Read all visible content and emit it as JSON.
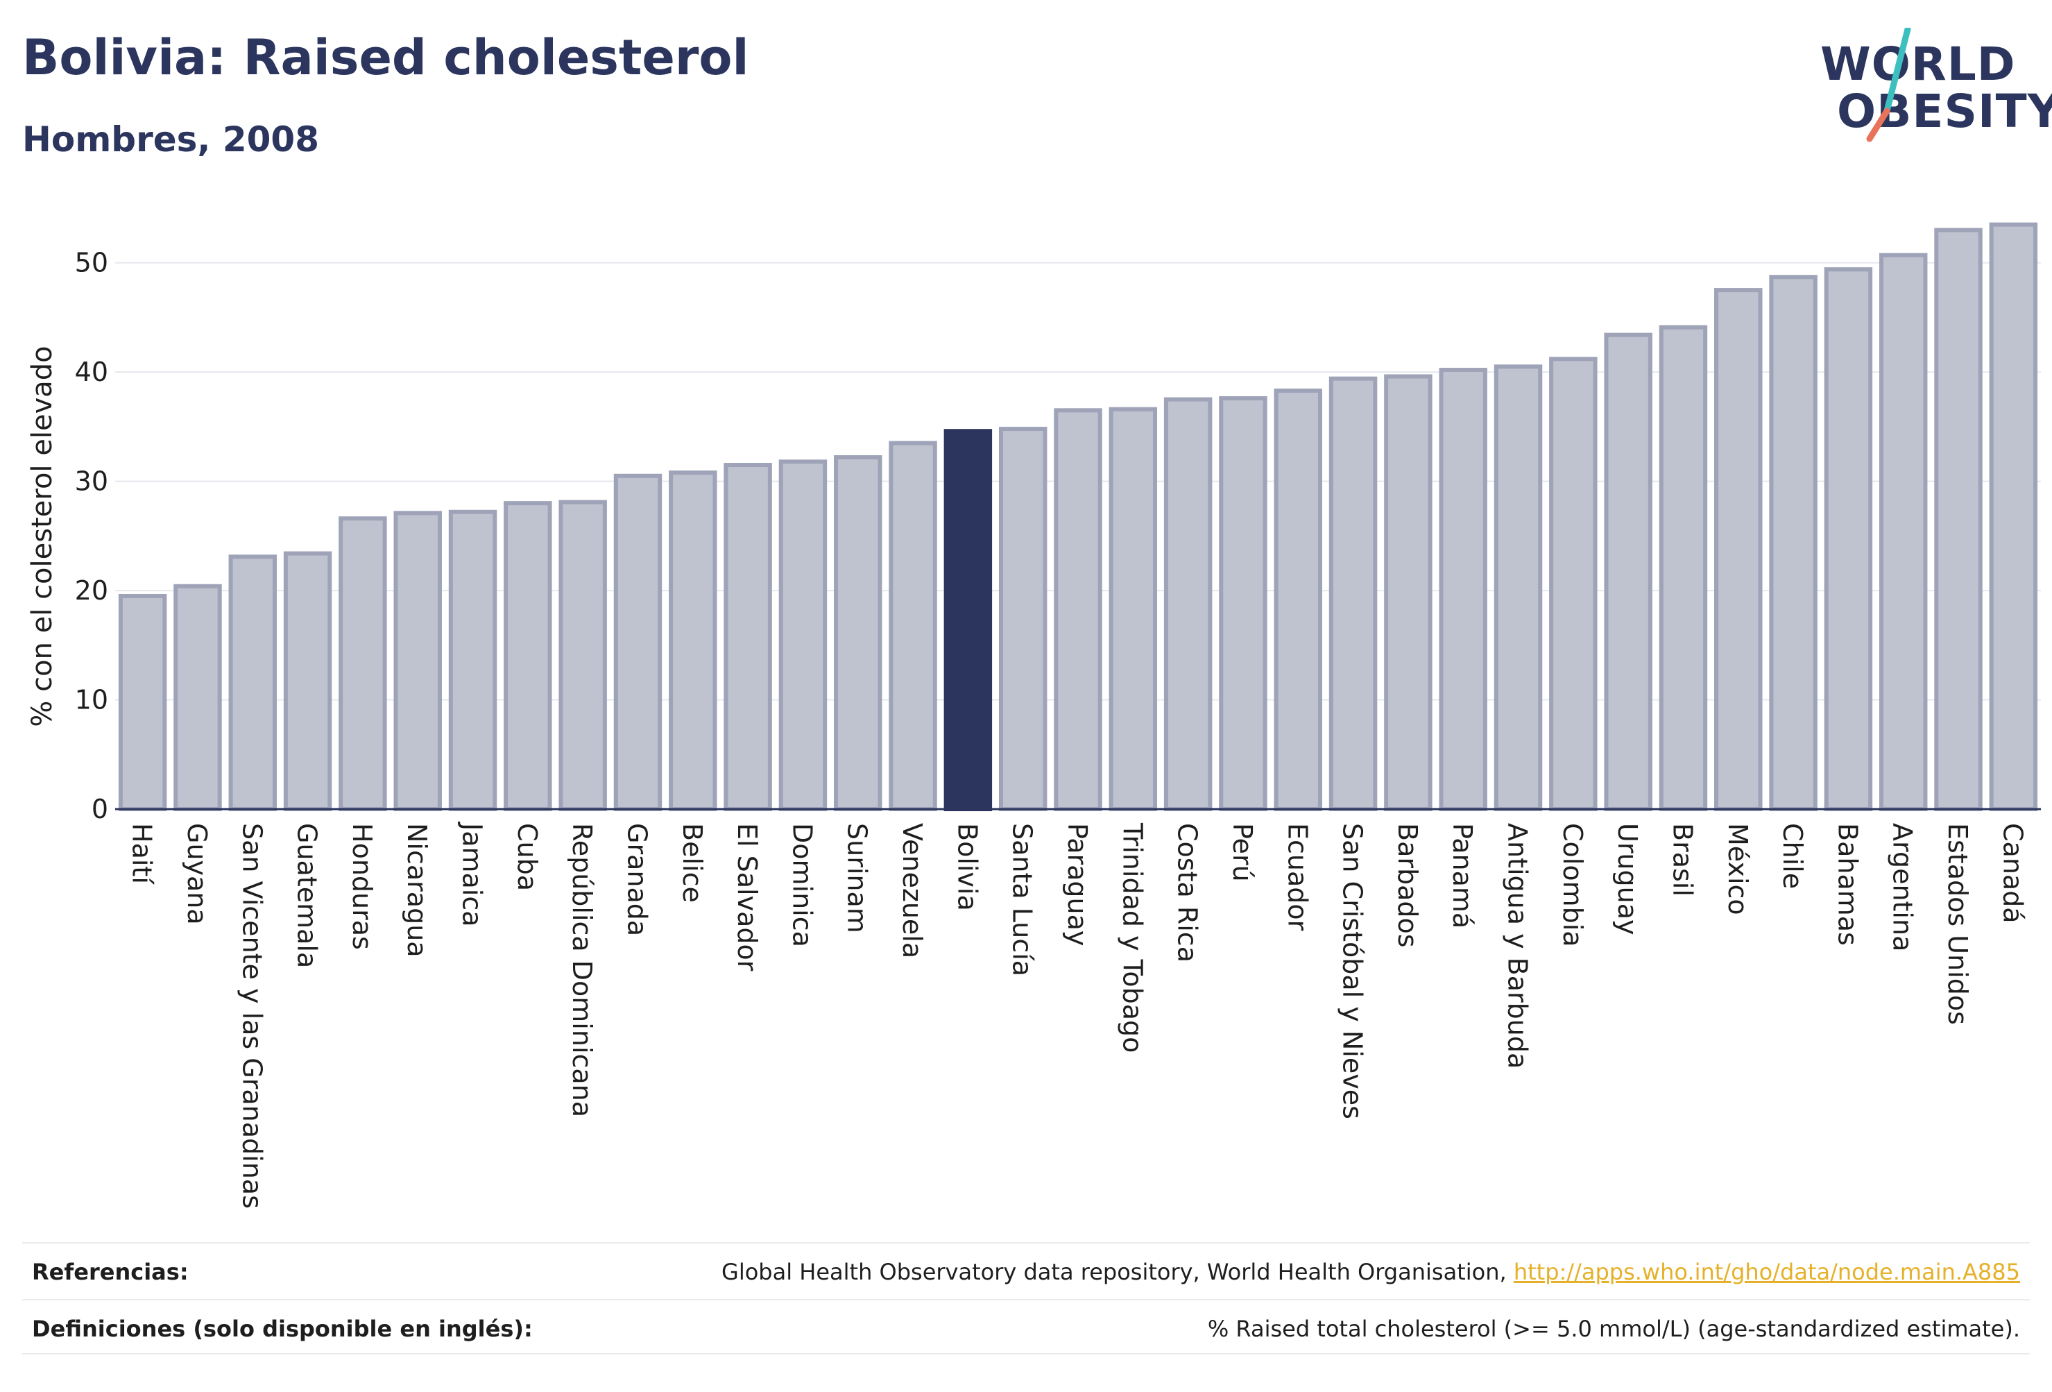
{
  "header": {
    "title": "Bolivia: Raised cholesterol",
    "subtitle": "Hombres, 2008"
  },
  "logo": {
    "line1": "WORLD",
    "line2": "OBESITY",
    "colors": {
      "text": "#2b355d",
      "slash_top": "#3dbfbf",
      "slash_bottom": "#e8735a"
    }
  },
  "chart_data": {
    "type": "bar",
    "ylabel": "% con el colesterol elevado",
    "ylim": [
      0,
      55
    ],
    "yticks": [
      0,
      10,
      20,
      30,
      40,
      50
    ],
    "grid": true,
    "highlight": "Bolivia",
    "colors": {
      "bar": "#bfc2cf",
      "bar_border": "#9ea3b8",
      "highlight": "#2b355d",
      "axis": "#2b355d",
      "grid": "#e6e8ed"
    },
    "categories": [
      "Haití",
      "Guyana",
      "San Vicente y las Granadinas",
      "Guatemala",
      "Honduras",
      "Nicaragua",
      "Jamaica",
      "Cuba",
      "República Dominicana",
      "Granada",
      "Belice",
      "El Salvador",
      "Dominica",
      "Surinam",
      "Venezuela",
      "Bolivia",
      "Santa Lucía",
      "Paraguay",
      "Trinidad y Tobago",
      "Costa Rica",
      "Perú",
      "Ecuador",
      "San Cristóbal y Nieves",
      "Barbados",
      "Panamá",
      "Antigua y Barbuda",
      "Colombia",
      "Uruguay",
      "Brasil",
      "México",
      "Chile",
      "Bahamas",
      "Argentina",
      "Estados Unidos",
      "Canadá"
    ],
    "values": [
      19.5,
      20.4,
      23.1,
      23.4,
      26.6,
      27.1,
      27.2,
      28.0,
      28.1,
      30.5,
      30.8,
      31.5,
      31.8,
      32.2,
      33.5,
      34.6,
      34.8,
      36.5,
      36.6,
      37.5,
      37.6,
      38.3,
      39.4,
      39.6,
      40.2,
      40.5,
      41.2,
      43.4,
      44.1,
      47.5,
      48.7,
      49.4,
      50.7,
      53.0,
      53.5
    ]
  },
  "footer": {
    "references_label": "Referencias:",
    "references_text": "Global Health Observatory data repository, World Health Organisation, ",
    "references_link": "http://apps.who.int/gho/data/node.main.A885",
    "definitions_label": "Definiciones (solo disponible en inglés):",
    "definitions_text": "% Raised total cholesterol (>= 5.0 mmol/L) (age-standardized estimate)."
  }
}
